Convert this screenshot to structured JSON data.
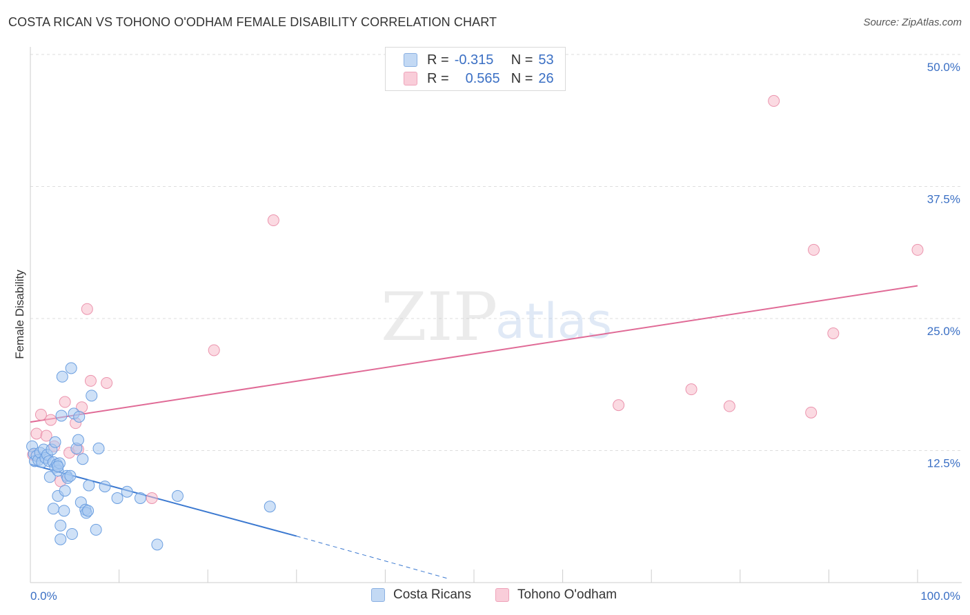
{
  "title": "COSTA RICAN VS TOHONO O'ODHAM FEMALE DISABILITY CORRELATION CHART",
  "source": "Source: ZipAtlas.com",
  "watermark": {
    "zip": "ZIP",
    "atlas": "atlas"
  },
  "legend": {
    "costa": {
      "r_label": "R =",
      "r_value": "-0.315",
      "n_label": "N =",
      "n_value": "53"
    },
    "tohono": {
      "r_label": "R =",
      "r_value": "0.565",
      "n_label": "N =",
      "n_value": "26"
    }
  },
  "colors": {
    "costa_fill": "#a8c8f0",
    "costa_stroke": "#6a9ee0",
    "costa_line": "#3a78d0",
    "tohono_fill": "#f7bccb",
    "tohono_stroke": "#eb93ad",
    "tohono_line": "#e06a96",
    "tick_label": "#3a6fc4",
    "grid": "#dddddd"
  },
  "chart_data": {
    "type": "scatter",
    "title": "COSTA RICAN VS TOHONO O'ODHAM FEMALE DISABILITY CORRELATION CHART",
    "xlabel": "",
    "ylabel": "Female Disability",
    "xlim": [
      0,
      100
    ],
    "ylim": [
      0,
      50
    ],
    "x_tick_labels": [
      "0.0%",
      "100.0%"
    ],
    "y_ticks": [
      12.5,
      25.0,
      37.5,
      50.0
    ],
    "y_tick_labels": [
      "12.5%",
      "25.0%",
      "37.5%",
      "50.0%"
    ],
    "grid": true,
    "legend_position": "top-center",
    "series": [
      {
        "name": "Costa Ricans",
        "r": -0.315,
        "n": 53,
        "points": [
          [
            0.2,
            12.9
          ],
          [
            0.4,
            12.2
          ],
          [
            0.5,
            11.5
          ],
          [
            0.7,
            12.0
          ],
          [
            0.9,
            11.6
          ],
          [
            1.1,
            12.3
          ],
          [
            1.3,
            11.4
          ],
          [
            1.5,
            12.6
          ],
          [
            1.7,
            11.8
          ],
          [
            1.9,
            12.1
          ],
          [
            2.1,
            11.5
          ],
          [
            2.2,
            10.0
          ],
          [
            2.4,
            12.6
          ],
          [
            2.6,
            11.4
          ],
          [
            2.8,
            10.9
          ],
          [
            3.0,
            11.2
          ],
          [
            2.6,
            7.0
          ],
          [
            2.8,
            13.3
          ],
          [
            3.1,
            10.6
          ],
          [
            3.3,
            11.3
          ],
          [
            3.1,
            11.0
          ],
          [
            3.1,
            8.2
          ],
          [
            3.4,
            5.4
          ],
          [
            3.4,
            4.1
          ],
          [
            3.5,
            15.8
          ],
          [
            3.6,
            19.5
          ],
          [
            3.8,
            6.8
          ],
          [
            3.9,
            8.7
          ],
          [
            4.1,
            10.1
          ],
          [
            4.2,
            9.9
          ],
          [
            4.5,
            10.1
          ],
          [
            4.6,
            20.3
          ],
          [
            4.7,
            4.6
          ],
          [
            4.9,
            16.0
          ],
          [
            5.2,
            12.7
          ],
          [
            5.4,
            13.5
          ],
          [
            5.5,
            15.7
          ],
          [
            5.7,
            7.6
          ],
          [
            5.9,
            11.7
          ],
          [
            6.2,
            6.9
          ],
          [
            6.3,
            6.6
          ],
          [
            6.5,
            6.8
          ],
          [
            6.6,
            9.2
          ],
          [
            6.9,
            17.7
          ],
          [
            7.4,
            5.0
          ],
          [
            7.7,
            12.7
          ],
          [
            8.4,
            9.1
          ],
          [
            9.8,
            8.0
          ],
          [
            10.9,
            8.6
          ],
          [
            14.3,
            3.6
          ],
          [
            16.6,
            8.2
          ],
          [
            27.0,
            7.2
          ],
          [
            12.4,
            8.0
          ]
        ],
        "trend": {
          "x0": 0,
          "y0": 11.2,
          "x1": 30,
          "y1": 4.4,
          "dashed_to_x": 47,
          "dashed_to_y": 0.4
        }
      },
      {
        "name": "Tohono O'odham",
        "r": 0.565,
        "n": 26,
        "points": [
          [
            0.7,
            14.1
          ],
          [
            1.2,
            15.9
          ],
          [
            1.8,
            13.9
          ],
          [
            2.3,
            15.4
          ],
          [
            2.7,
            12.9
          ],
          [
            3.4,
            9.6
          ],
          [
            3.9,
            17.1
          ],
          [
            4.4,
            12.3
          ],
          [
            5.1,
            15.1
          ],
          [
            5.4,
            12.6
          ],
          [
            5.8,
            16.6
          ],
          [
            6.4,
            25.9
          ],
          [
            6.8,
            19.1
          ],
          [
            8.6,
            18.9
          ],
          [
            13.7,
            8.0
          ],
          [
            20.7,
            22.0
          ],
          [
            27.4,
            34.3
          ],
          [
            66.3,
            16.8
          ],
          [
            74.5,
            18.3
          ],
          [
            78.8,
            16.7
          ],
          [
            83.8,
            45.6
          ],
          [
            88.0,
            16.1
          ],
          [
            88.3,
            31.5
          ],
          [
            90.5,
            23.6
          ],
          [
            100.0,
            31.5
          ],
          [
            0.3,
            12.1
          ]
        ],
        "trend": {
          "x0": 0,
          "y0": 15.2,
          "x1": 100,
          "y1": 28.1
        }
      }
    ]
  },
  "bottom_legend": {
    "costa": "Costa Ricans",
    "tohono": "Tohono O'odham"
  }
}
